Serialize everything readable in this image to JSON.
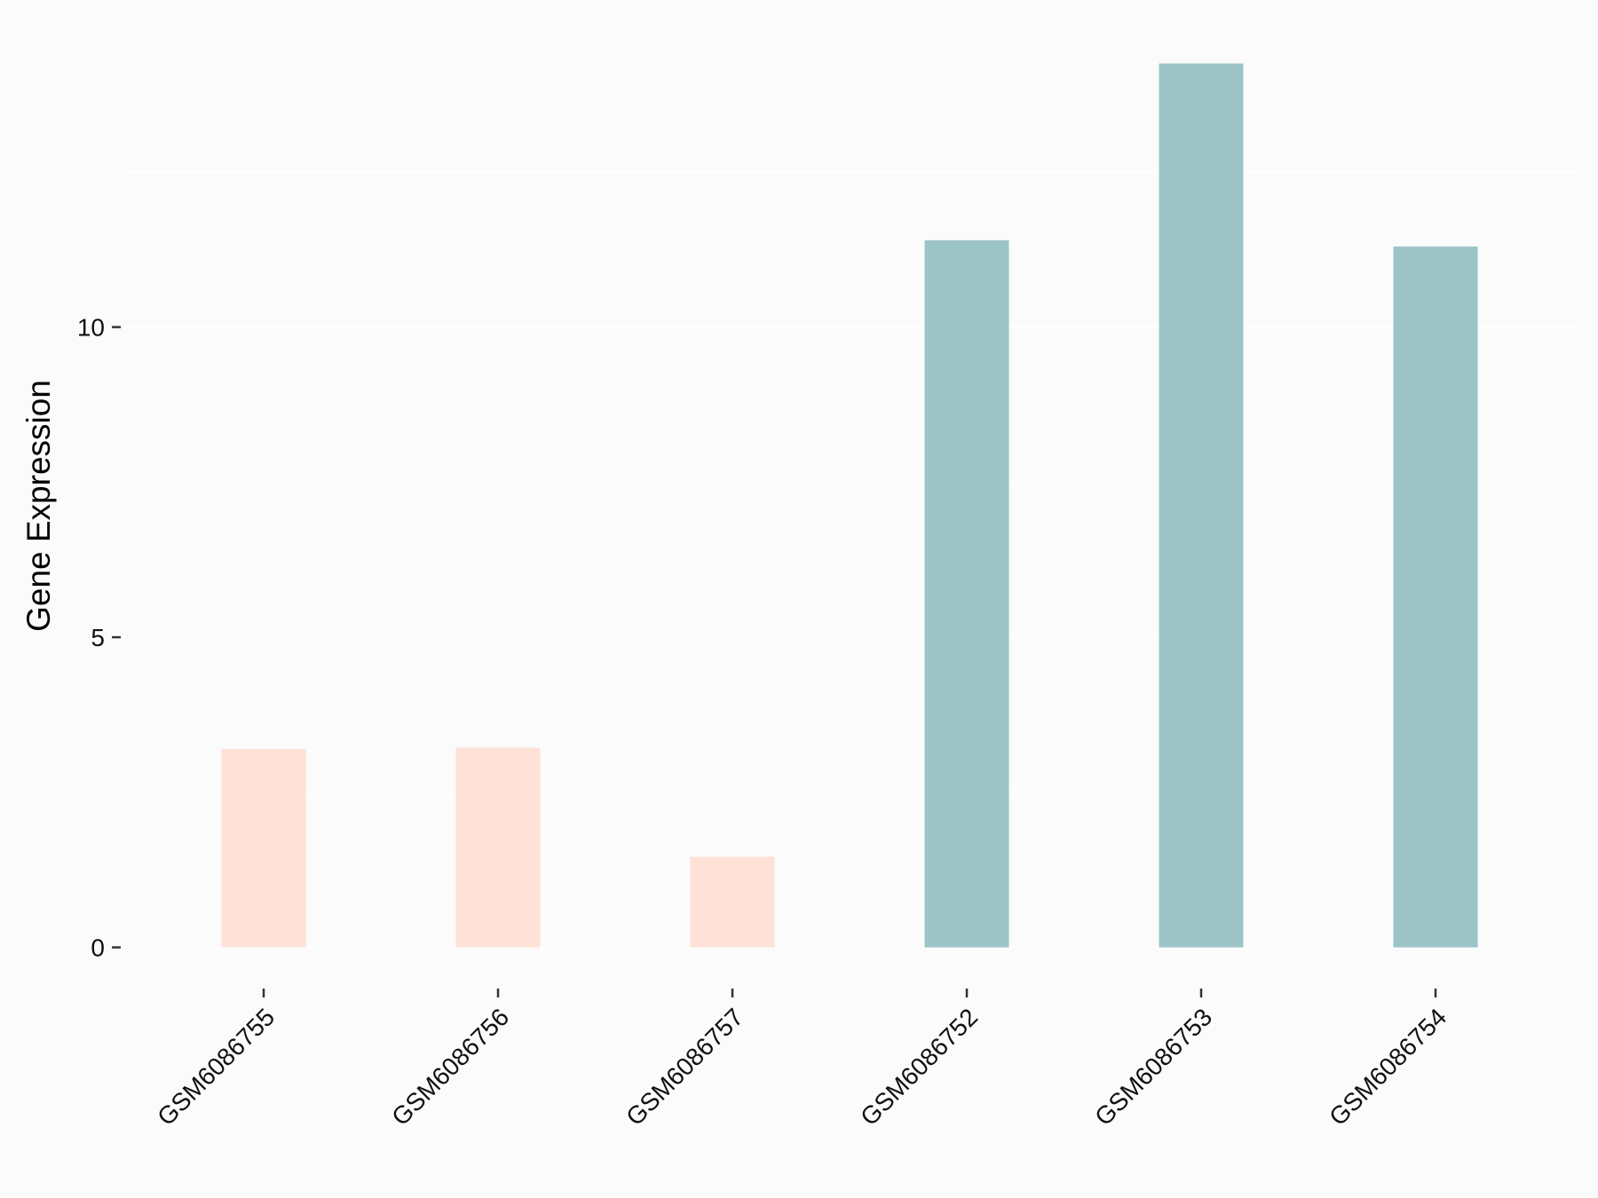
{
  "chart_data": {
    "type": "bar",
    "title": "",
    "xlabel": "",
    "ylabel": "Gene Expression",
    "categories": [
      "GSM6086755",
      "GSM6086756",
      "GSM6086757",
      "GSM6086752",
      "GSM6086753",
      "GSM6086754"
    ],
    "values": [
      3.2,
      3.22,
      1.46,
      11.4,
      14.25,
      11.3
    ],
    "bar_colors": [
      "#ffe1d7",
      "#ffe1d7",
      "#ffe1d7",
      "#9cc4c7",
      "#9cc4c7",
      "#9cc4c7"
    ],
    "yticks": [
      0,
      5,
      10
    ],
    "ytick_labels": [
      "0",
      "5",
      "10"
    ],
    "minor_gridlines": [
      2.5,
      7.5,
      12.5
    ],
    "ylim": [
      0,
      14.25
    ],
    "grid": true,
    "background": "#fbfbfb",
    "grid_color": "#ffffff"
  }
}
